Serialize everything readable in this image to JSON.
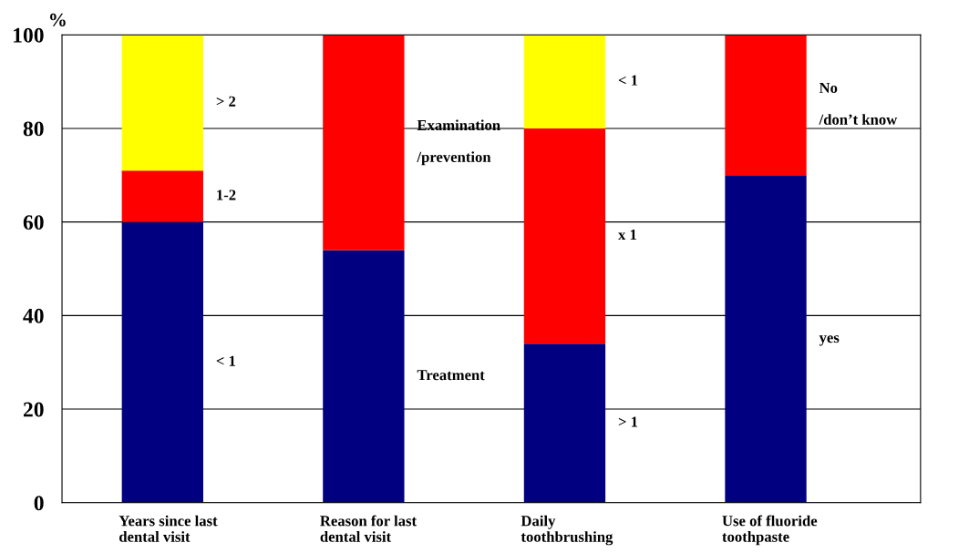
{
  "chart_data": {
    "type": "bar",
    "stacked": true,
    "ylabel": "%",
    "categories": [
      "Years since last\ndental visit",
      "Reason for last\ndental visit",
      "Daily\ntoothbrushing",
      "Use of fluoride\ntoothpaste"
    ],
    "series": [
      {
        "color": "#000080",
        "values": [
          60,
          54,
          34,
          70
        ]
      },
      {
        "color": "#ff0000",
        "values": [
          11,
          46,
          46,
          30
        ]
      },
      {
        "color": "#ffff00",
        "values": [
          29,
          null,
          20,
          null
        ]
      }
    ],
    "ylim": [
      0,
      100
    ],
    "yticks": [
      0,
      20,
      40,
      60,
      80,
      100
    ],
    "grid": "y",
    "legend": false,
    "annotations": [
      "> 2",
      "1-2",
      "< 1",
      "Examination\n\n/prevention",
      "Treatment",
      "< 1",
      "x 1",
      "> 1",
      "No\n\n/don’t know",
      "yes"
    ]
  }
}
